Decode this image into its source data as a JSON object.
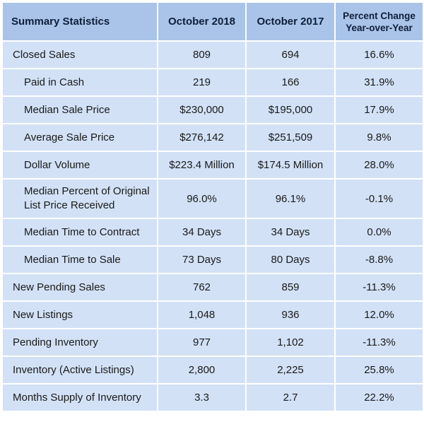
{
  "header": {
    "col1": "Summary Statistics",
    "col2": "October 2018",
    "col3": "October 2017",
    "col4_line1": "Percent Change",
    "col4_line2": "Year-over-Year"
  },
  "rows": [
    {
      "label": "Closed Sales",
      "oct2018": "809",
      "oct2017": "694",
      "change": "16.6%"
    },
    {
      "label": "Paid in Cash",
      "oct2018": "219",
      "oct2017": "166",
      "change": "31.9%"
    },
    {
      "label": "Median Sale Price",
      "oct2018": "$230,000",
      "oct2017": "$195,000",
      "change": "17.9%"
    },
    {
      "label": "Average Sale Price",
      "oct2018": "$276,142",
      "oct2017": "$251,509",
      "change": "9.8%"
    },
    {
      "label": "Dollar Volume",
      "oct2018": "$223.4 Million",
      "oct2017": "$174.5 Million",
      "change": "28.0%"
    },
    {
      "label": "Median Percent of Original List Price Received",
      "oct2018": "96.0%",
      "oct2017": "96.1%",
      "change": "-0.1%"
    },
    {
      "label": "Median Time to Contract",
      "oct2018": "34 Days",
      "oct2017": "34 Days",
      "change": "0.0%"
    },
    {
      "label": "Median Time to Sale",
      "oct2018": "73 Days",
      "oct2017": "80 Days",
      "change": "-8.8%"
    },
    {
      "label": "New Pending Sales",
      "oct2018": "762",
      "oct2017": "859",
      "change": "-11.3%"
    },
    {
      "label": "New Listings",
      "oct2018": "1,048",
      "oct2017": "936",
      "change": "12.0%"
    },
    {
      "label": "Pending Inventory",
      "oct2018": "977",
      "oct2017": "1,102",
      "change": "-11.3%"
    },
    {
      "label": "Inventory (Active Listings)",
      "oct2018": "2,800",
      "oct2017": "2,225",
      "change": "25.8%"
    },
    {
      "label": "Months Supply of Inventory",
      "oct2018": "3.3",
      "oct2017": "2.7",
      "change": "22.2%"
    }
  ]
}
